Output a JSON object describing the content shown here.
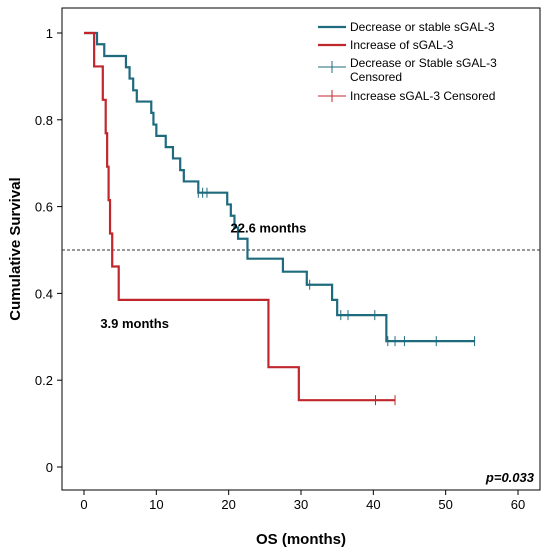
{
  "chart_data": {
    "type": "line",
    "xlabel": "OS (months)",
    "ylabel": "Cumulative Survival",
    "xlim": [
      0,
      60
    ],
    "ylim": [
      0,
      1
    ],
    "x_ticks": [
      "0",
      "10",
      "20",
      "30",
      "40",
      "50",
      "60"
    ],
    "y_ticks": [
      "0",
      "0.2",
      "0.4",
      "0.6",
      "0.8",
      "1"
    ],
    "grid": false,
    "legend_position": "top-right",
    "legend": [
      "Decrease or stable sGAL-3",
      "Increase of sGAL-3",
      "Decrease or Stable sGAL-3 Censored",
      "Increase sGAL-3 Censored"
    ],
    "reference_line": {
      "y": 0.5,
      "style": "dashed"
    },
    "annotations": [
      {
        "text": "22.6 months",
        "x": 25.5,
        "y": 0.54
      },
      {
        "text": "3.9 months",
        "x": 7,
        "y": 0.32
      }
    ],
    "p_value": "p=0.033",
    "series": [
      {
        "legend_index": 0,
        "color": "#1f6b7e",
        "steps": [
          [
            0,
            1.0
          ],
          [
            1.8,
            0.974
          ],
          [
            2.8,
            0.947
          ],
          [
            5.8,
            0.921
          ],
          [
            6.3,
            0.895
          ],
          [
            6.8,
            0.868
          ],
          [
            7.3,
            0.842
          ],
          [
            9.3,
            0.816
          ],
          [
            9.6,
            0.789
          ],
          [
            10.0,
            0.763
          ],
          [
            11.3,
            0.737
          ],
          [
            12.3,
            0.711
          ],
          [
            13.3,
            0.684
          ],
          [
            13.8,
            0.658
          ],
          [
            15.8,
            0.632
          ],
          [
            19.8,
            0.605
          ],
          [
            20.3,
            0.579
          ],
          [
            20.8,
            0.552
          ],
          [
            21.3,
            0.526
          ],
          [
            22.6,
            0.48
          ],
          [
            27.5,
            0.45
          ],
          [
            30.8,
            0.42
          ],
          [
            34.3,
            0.385
          ],
          [
            35.0,
            0.35
          ],
          [
            41.8,
            0.29
          ],
          [
            54.0,
            0.29
          ]
        ],
        "censored_x": [
          15.8,
          16.4,
          17.0,
          31.2,
          35.5,
          36.5,
          40.2,
          42.0,
          43.0,
          44.3,
          48.7,
          54.0
        ]
      },
      {
        "legend_index": 1,
        "color": "#c0272d",
        "steps": [
          [
            0,
            1.0
          ],
          [
            1.4,
            0.923
          ],
          [
            2.6,
            0.846
          ],
          [
            3.0,
            0.769
          ],
          [
            3.2,
            0.692
          ],
          [
            3.4,
            0.615
          ],
          [
            3.6,
            0.538
          ],
          [
            3.9,
            0.462
          ],
          [
            4.8,
            0.385
          ],
          [
            25.5,
            0.23
          ],
          [
            29.7,
            0.154
          ],
          [
            43.0,
            0.154
          ]
        ],
        "censored_x": [
          40.3,
          43.0
        ]
      }
    ]
  }
}
